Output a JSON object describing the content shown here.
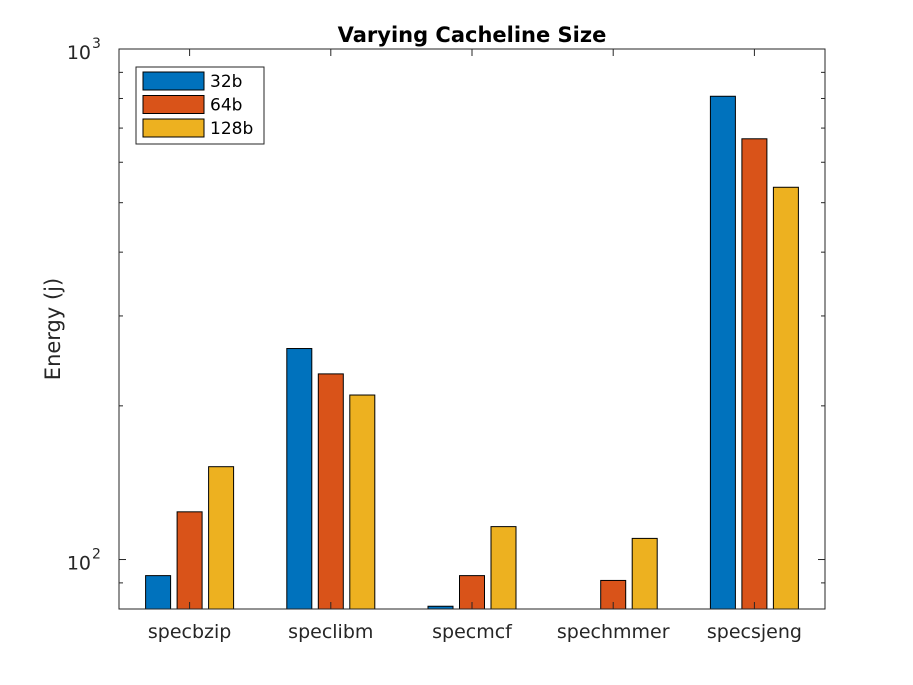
{
  "chart_data": {
    "type": "bar",
    "title": "Varying Cacheline Size",
    "xlabel": "",
    "ylabel": "Energy (j)",
    "yscale": "log",
    "ylim": [
      80,
      1000
    ],
    "ytick_labels": [
      {
        "base": "10",
        "exp": "2",
        "value": 100
      },
      {
        "base": "10",
        "exp": "3",
        "value": 1000
      }
    ],
    "categories": [
      "specbzip",
      "speclibm",
      "specmcf",
      "spechmmer",
      "specsjeng"
    ],
    "series": [
      {
        "name": "32b",
        "color": "#0072BD",
        "values": [
          93,
          259,
          81,
          72,
          808
        ]
      },
      {
        "name": "64b",
        "color": "#D95319",
        "values": [
          124,
          231,
          93,
          91,
          667
        ]
      },
      {
        "name": "128b",
        "color": "#EDB120",
        "values": [
          152,
          210,
          116,
          110,
          536
        ]
      }
    ],
    "legend_position": "top-left",
    "grid": false
  }
}
